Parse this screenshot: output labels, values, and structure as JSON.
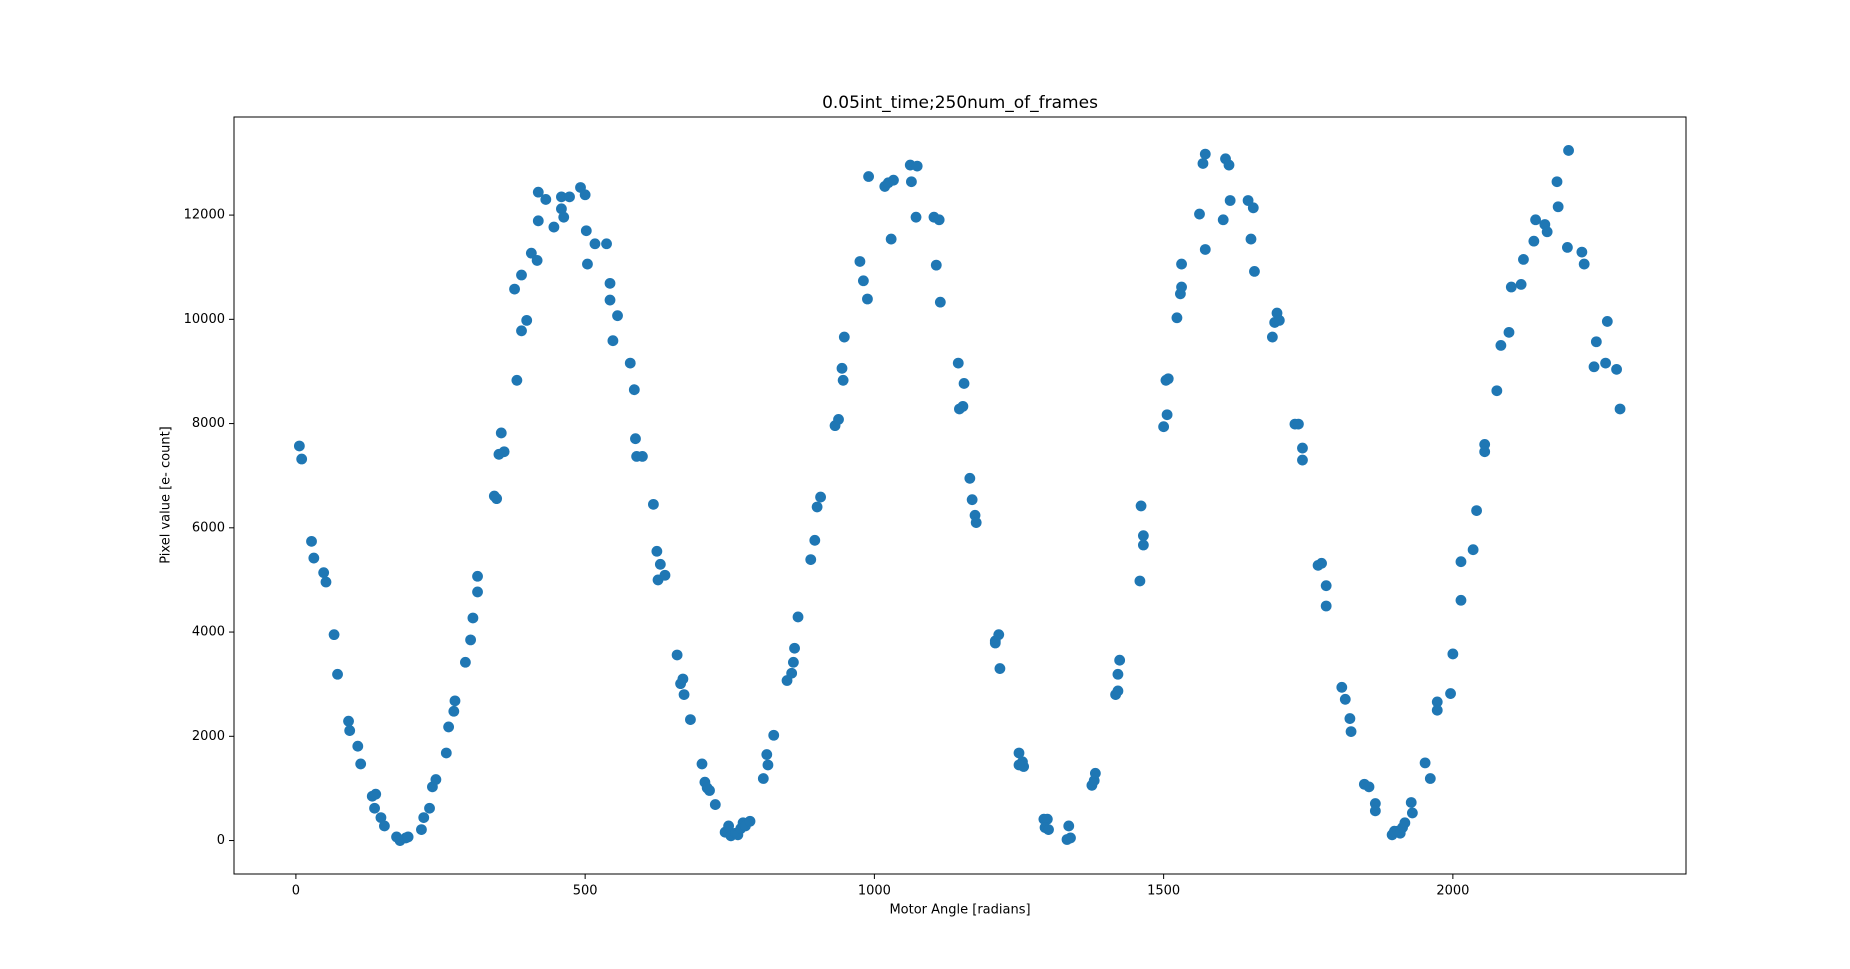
{
  "chart_data": {
    "type": "scatter",
    "title": "0.05int_time;250num_of_frames",
    "x_label": "Motor Angle [radians]",
    "y_label": "Pixel value [e- count]",
    "color": "#1f77b4",
    "xlim": [
      -107,
      2403
    ],
    "ylim": [
      -642,
      13882
    ],
    "xticks": [
      0,
      500,
      1000,
      1500,
      2000
    ],
    "yticks": [
      0,
      2000,
      4000,
      6000,
      8000,
      10000,
      12000
    ],
    "x": [
      6,
      10,
      27,
      31,
      48,
      52,
      66,
      72,
      91,
      93,
      107,
      112,
      132,
      138,
      136,
      147,
      153,
      174,
      180,
      190,
      194,
      217,
      221,
      231,
      236,
      242,
      260,
      264,
      273,
      275,
      293,
      302,
      306,
      314,
      314,
      343,
      347,
      351,
      355,
      360,
      382,
      390,
      399,
      378,
      390,
      407,
      417,
      419,
      419,
      432,
      446,
      459,
      459,
      463,
      473,
      492,
      500,
      502,
      504,
      517,
      537,
      543,
      543,
      556,
      548,
      578,
      585,
      587,
      589,
      599,
      618,
      624,
      630,
      626,
      638,
      659,
      665,
      669,
      671,
      682,
      702,
      707,
      711,
      715,
      725,
      742,
      748,
      752,
      760,
      764,
      769,
      773,
      777,
      785,
      808,
      814,
      816,
      826,
      849,
      857,
      860,
      862,
      868,
      890,
      897,
      901,
      907,
      932,
      938,
      944,
      946,
      948,
      975,
      981,
      988,
      990,
      1018,
      1024,
      1033,
      1029,
      1062,
      1064,
      1074,
      1072,
      1103,
      1107,
      1112,
      1114,
      1145,
      1155,
      1147,
      1153,
      1165,
      1169,
      1174,
      1176,
      1209,
      1209,
      1215,
      1217,
      1250,
      1256,
      1258,
      1250,
      1293,
      1299,
      1295,
      1301,
      1336,
      1339,
      1333,
      1376,
      1380,
      1382,
      1417,
      1421,
      1421,
      1424,
      1459,
      1461,
      1465,
      1465,
      1500,
      1506,
      1504,
      1508,
      1523,
      1529,
      1531,
      1531,
      1562,
      1568,
      1572,
      1572,
      1603,
      1607,
      1613,
      1615,
      1646,
      1651,
      1655,
      1657,
      1688,
      1692,
      1696,
      1700,
      1727,
      1733,
      1740,
      1740,
      1767,
      1773,
      1781,
      1781,
      1808,
      1814,
      1822,
      1824,
      1847,
      1855,
      1866,
      1866,
      1895,
      1899,
      1905,
      1909,
      1913,
      1917,
      1928,
      1930,
      1952,
      1961,
      1973,
      1973,
      1996,
      2000,
      2014,
      2014,
      2035,
      2041,
      2055,
      2055,
      2076,
      2083,
      2097,
      2101,
      2118,
      2122,
      2140,
      2143,
      2159,
      2163,
      2180,
      2182,
      2200,
      2198,
      2223,
      2227,
      2244,
      2248,
      2267,
      2264,
      2283,
      2289
    ],
    "values": [
      7570,
      7320,
      5740,
      5420,
      5140,
      4960,
      3950,
      3190,
      2290,
      2110,
      1810,
      1470,
      850,
      890,
      620,
      440,
      280,
      70,
      0,
      50,
      70,
      210,
      440,
      620,
      1030,
      1170,
      1680,
      2180,
      2480,
      2680,
      3420,
      3850,
      4270,
      4770,
      5070,
      6610,
      6560,
      7410,
      7820,
      7460,
      8830,
      9780,
      9980,
      10580,
      10850,
      11270,
      11130,
      12440,
      11890,
      12300,
      11770,
      12120,
      12350,
      11960,
      12350,
      12530,
      12390,
      11700,
      11060,
      11450,
      11450,
      10690,
      10370,
      10070,
      9590,
      9160,
      8650,
      7710,
      7370,
      7370,
      6450,
      5550,
      5300,
      5000,
      5090,
      3560,
      3010,
      3100,
      2800,
      2320,
      1470,
      1120,
      1010,
      960,
      690,
      160,
      280,
      90,
      140,
      110,
      230,
      340,
      280,
      370,
      1190,
      1650,
      1450,
      2020,
      3070,
      3210,
      3420,
      3690,
      4290,
      5390,
      5760,
      6400,
      6590,
      7960,
      8080,
      9060,
      8830,
      9660,
      11110,
      10740,
      10390,
      12740,
      12550,
      12620,
      12670,
      11540,
      12960,
      12640,
      12940,
      11960,
      11960,
      11040,
      11910,
      10330,
      9160,
      8770,
      8280,
      8330,
      6950,
      6540,
      6240,
      6100,
      3830,
      3790,
      3950,
      3300,
      1680,
      1510,
      1420,
      1450,
      410,
      410,
      250,
      210,
      280,
      50,
      20,
      1060,
      1150,
      1290,
      2800,
      2870,
      3190,
      3460,
      4980,
      6420,
      5850,
      5670,
      7940,
      8170,
      8830,
      8860,
      10030,
      10490,
      10620,
      11060,
      12020,
      12990,
      13170,
      11340,
      11910,
      13080,
      12960,
      12280,
      12280,
      11540,
      12140,
      10920,
      9660,
      9940,
      10120,
      9980,
      7990,
      7990,
      7530,
      7300,
      5280,
      5320,
      4890,
      4500,
      2940,
      2710,
      2340,
      2090,
      1080,
      1030,
      710,
      570,
      110,
      180,
      180,
      140,
      250,
      340,
      730,
      530,
      1490,
      1190,
      2660,
      2500,
      2820,
      3580,
      5350,
      4610,
      5580,
      6330,
      7600,
      7460,
      8630,
      9500,
      9750,
      10620,
      10670,
      11150,
      11500,
      11910,
      11820,
      11680,
      12640,
      12160,
      13240,
      11380,
      11290,
      11060,
      9090,
      9570,
      9960,
      9160,
      9040,
      8280
    ]
  }
}
